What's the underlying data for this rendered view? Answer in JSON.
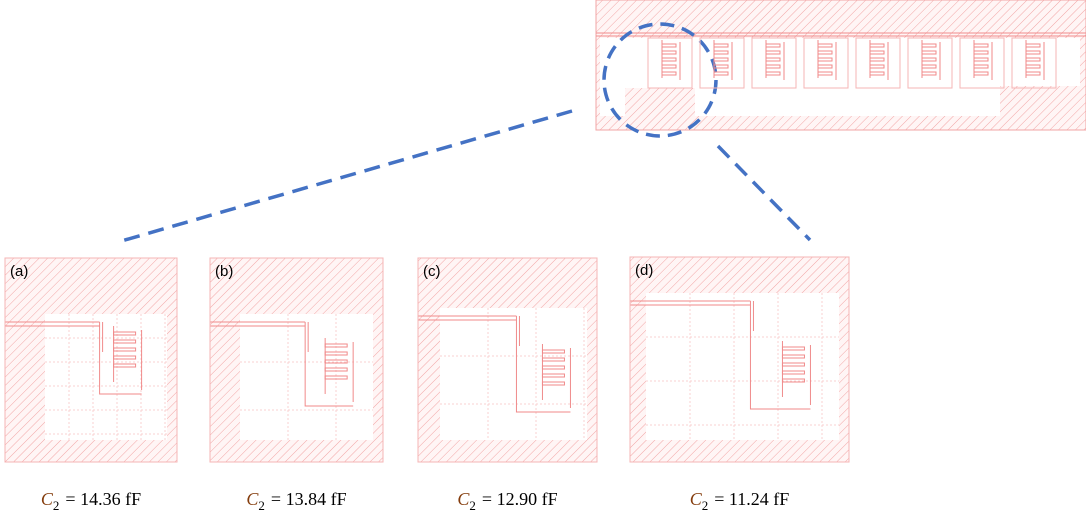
{
  "panels": [
    {
      "label": "(a)",
      "caption": {
        "symbol": "C",
        "subscript": "2",
        "text": "= 14.36 fF"
      }
    },
    {
      "label": "(b)",
      "caption": {
        "symbol": "C",
        "subscript": "2",
        "text": "= 13.84 fF"
      }
    },
    {
      "label": "(c)",
      "caption": {
        "symbol": "C",
        "subscript": "2",
        "text": "= 12.90 fF"
      }
    },
    {
      "label": "(d)",
      "caption": {
        "symbol": "C",
        "subscript": "2",
        "text": "= 11.24 fF"
      }
    }
  ]
}
